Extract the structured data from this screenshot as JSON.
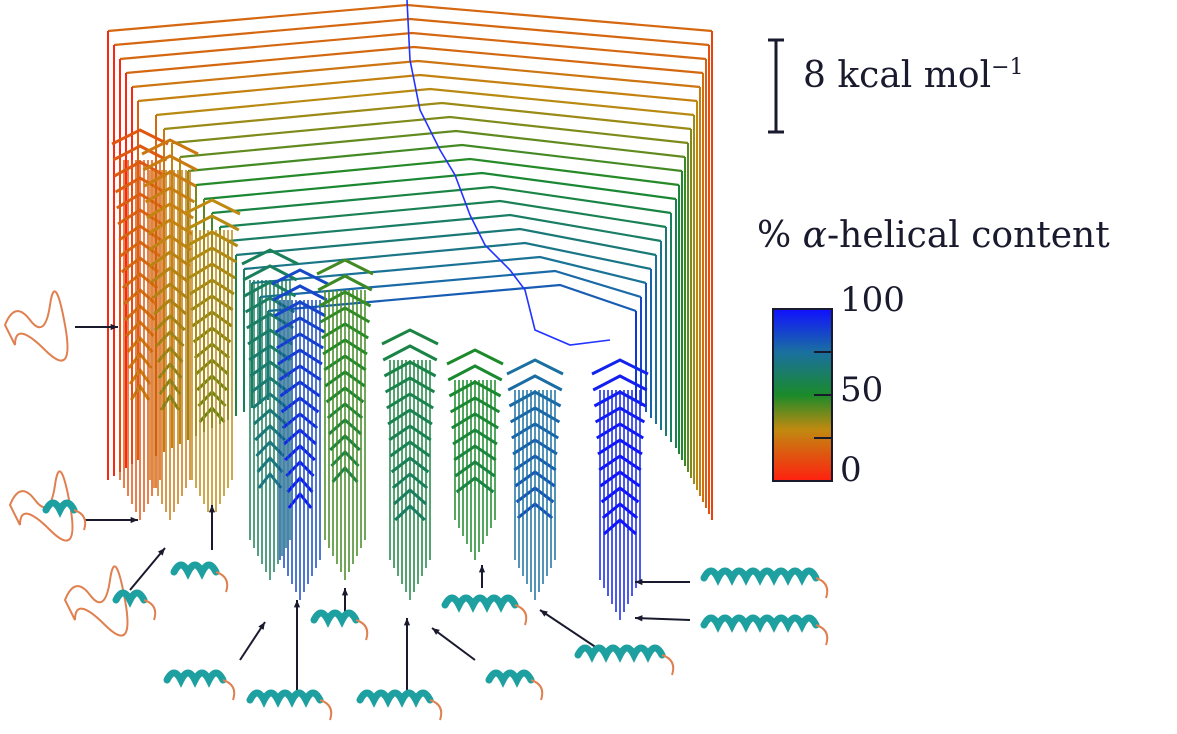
{
  "scale_bar": {
    "value": "8",
    "unit": "kcal mol",
    "exponent": "−1"
  },
  "colorbar": {
    "title_prefix": "%",
    "title_symbol": "α",
    "title_rest": "-helical content",
    "ticks": [
      "100",
      "50",
      "0"
    ],
    "range": [
      0,
      100
    ],
    "colors": {
      "low": "#ff2010",
      "mid_low": "#c08a10",
      "mid": "#1a8a2a",
      "mid_high": "#1a70a0",
      "high": "#1010ff"
    }
  },
  "global_minimum_path_color": "#2233ff"
}
